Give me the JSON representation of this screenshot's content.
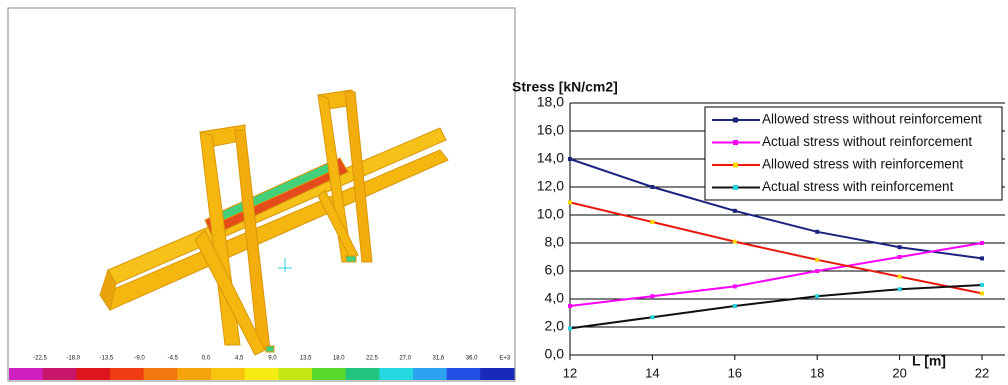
{
  "fem_view": {
    "scale_labels": [
      "-22,5",
      "-18,0",
      "-13,5",
      "-9,0",
      "-4,5",
      "0,0",
      "4,5",
      "9,0",
      "13,5",
      "18,0",
      "22,5",
      "27,0",
      "31,6",
      "36,0",
      "E+3"
    ]
  },
  "chart_data": {
    "type": "line",
    "y_label": "Stress [kN/cm2]",
    "x_label": "L [m]",
    "x": [
      12,
      14,
      16,
      18,
      20,
      22
    ],
    "xlim": [
      12,
      22
    ],
    "xticks": [
      12,
      14,
      16,
      18,
      20,
      22
    ],
    "ylim": [
      0,
      18
    ],
    "yticks": [
      {
        "value": 0,
        "label": "0,0"
      },
      {
        "value": 2,
        "label": "2,0"
      },
      {
        "value": 4,
        "label": "4,0"
      },
      {
        "value": 6,
        "label": "6,0"
      },
      {
        "value": 8,
        "label": "8,0"
      },
      {
        "value": 10,
        "label": "10,0"
      },
      {
        "value": 12,
        "label": "12,0"
      },
      {
        "value": 14,
        "label": "14,0"
      },
      {
        "value": 16,
        "label": "16,0"
      },
      {
        "value": 18,
        "label": "18,0"
      }
    ],
    "grid": true,
    "series": [
      {
        "name": "Allowed stress without reinforcement",
        "color": "#1a237e",
        "marker_color": "#1a237e",
        "values": [
          14.0,
          12.0,
          10.3,
          8.8,
          7.7,
          6.9
        ]
      },
      {
        "name": "Actual stress without reinforcement",
        "color": "#ff00ff",
        "marker_color": "#ff00ff",
        "values": [
          3.5,
          4.2,
          4.9,
          6.0,
          7.0,
          8.0
        ]
      },
      {
        "name": "Allowed stress with reinforcement",
        "color": "#e8190c",
        "marker_color": "#ffd800",
        "values": [
          10.9,
          9.5,
          8.1,
          6.8,
          5.6,
          4.4
        ]
      },
      {
        "name": "Actual stress with reinforcement",
        "color": "#111111",
        "marker_color": "#27d3e0",
        "values": [
          1.9,
          2.7,
          3.5,
          4.2,
          4.7,
          5.0
        ]
      }
    ]
  }
}
